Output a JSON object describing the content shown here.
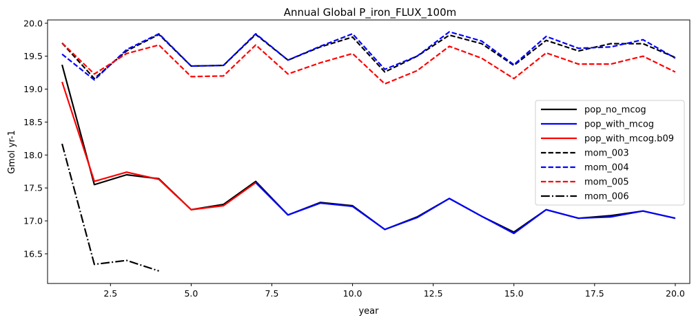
{
  "chart_data": {
    "type": "line",
    "title": "Annual Global P_iron_FLUX_100m",
    "xlabel": "year",
    "ylabel": "Gmol yr-1",
    "xlim": [
      0.55,
      20.45
    ],
    "ylim": [
      16.05,
      20.05
    ],
    "xticks": [
      2.5,
      5.0,
      7.5,
      10.0,
      12.5,
      15.0,
      17.5,
      20.0
    ],
    "xtick_labels": [
      "2.5",
      "5.0",
      "7.5",
      "10.0",
      "12.5",
      "15.0",
      "17.5",
      "20.0"
    ],
    "yticks": [
      16.5,
      17.0,
      17.5,
      18.0,
      18.5,
      19.0,
      19.5,
      20.0
    ],
    "ytick_labels": [
      "16.5",
      "17.0",
      "17.5",
      "18.0",
      "18.5",
      "19.0",
      "19.5",
      "20.0"
    ],
    "grid": false,
    "legend_position": "center-right",
    "series": [
      {
        "name": "pop_no_mcog",
        "color": "#000000",
        "style": "solid",
        "x": [
          1,
          2,
          3,
          4,
          5,
          6,
          7,
          8,
          9,
          10,
          11,
          12,
          13,
          14,
          15,
          16,
          17,
          18,
          19,
          20
        ],
        "y": [
          19.37,
          17.55,
          17.7,
          17.64,
          17.17,
          17.25,
          17.6,
          17.09,
          17.28,
          17.23,
          16.87,
          17.06,
          17.34,
          17.07,
          16.83,
          17.17,
          17.04,
          17.08,
          17.15,
          17.04
        ]
      },
      {
        "name": "pop_with_mcog",
        "color": "#0000ff",
        "style": "solid",
        "x": [
          1,
          2,
          3,
          4,
          5,
          6,
          7,
          8,
          9,
          10,
          11,
          12,
          13,
          14,
          15,
          16,
          17,
          18,
          19,
          20
        ],
        "y": [
          null,
          null,
          null,
          null,
          null,
          null,
          17.58,
          17.09,
          17.27,
          17.22,
          16.87,
          17.05,
          17.34,
          17.07,
          16.81,
          17.17,
          17.04,
          17.06,
          17.15,
          17.04
        ]
      },
      {
        "name": "pop_with_mcog.b09",
        "color": "#ff0000",
        "style": "solid",
        "x": [
          1,
          2,
          3,
          4,
          5,
          6,
          7
        ],
        "y": [
          19.11,
          17.6,
          17.74,
          17.63,
          17.17,
          17.23,
          17.58
        ]
      },
      {
        "name": "mom_003",
        "color": "#000000",
        "style": "dashed",
        "x": [
          1,
          2,
          3,
          4,
          5,
          6,
          7,
          8,
          9,
          10,
          11,
          12,
          13,
          14,
          15,
          16,
          17,
          18,
          19,
          20
        ],
        "y": [
          19.7,
          19.16,
          19.58,
          19.83,
          19.35,
          19.36,
          19.83,
          19.44,
          19.64,
          19.79,
          19.26,
          19.5,
          19.82,
          19.69,
          19.36,
          19.74,
          19.58,
          19.69,
          19.69,
          19.48
        ]
      },
      {
        "name": "mom_004",
        "color": "#0000ff",
        "style": "dashed",
        "x": [
          1,
          2,
          3,
          4,
          5,
          6,
          7,
          8,
          9,
          10,
          11,
          12,
          13,
          14,
          15,
          16,
          17,
          18,
          19,
          20
        ],
        "y": [
          19.53,
          19.14,
          19.6,
          19.84,
          19.35,
          19.36,
          19.84,
          19.44,
          19.65,
          19.84,
          19.3,
          19.5,
          19.87,
          19.73,
          19.37,
          19.8,
          19.62,
          19.64,
          19.75,
          19.47
        ]
      },
      {
        "name": "mom_005",
        "color": "#ff0000",
        "style": "dashed",
        "x": [
          1,
          2,
          3,
          4,
          5,
          6,
          7,
          8,
          9,
          10,
          11,
          12,
          13,
          14,
          15,
          16,
          17,
          18,
          19,
          20
        ],
        "y": [
          19.7,
          19.23,
          19.54,
          19.67,
          19.19,
          19.2,
          19.67,
          19.23,
          19.4,
          19.54,
          19.08,
          19.28,
          19.65,
          19.47,
          19.16,
          19.55,
          19.38,
          19.38,
          19.5,
          19.26
        ]
      },
      {
        "name": "mom_006",
        "color": "#000000",
        "style": "dashdot",
        "x": [
          1,
          2,
          3,
          4
        ],
        "y": [
          18.17,
          16.34,
          16.4,
          16.24
        ]
      }
    ]
  }
}
